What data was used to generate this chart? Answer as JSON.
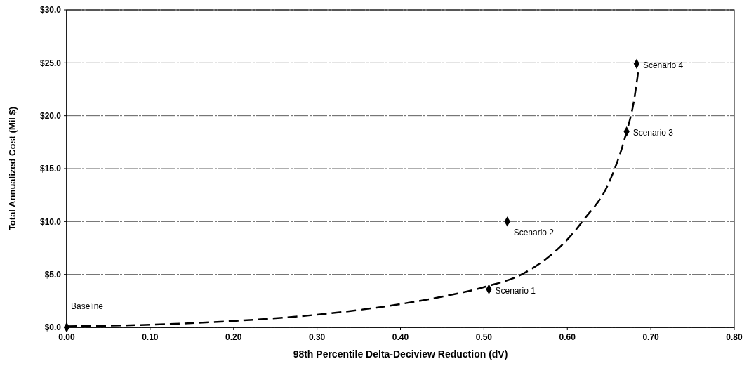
{
  "chart_data": {
    "type": "scatter",
    "xlabel": "98th Percentile Delta-Deciview Reduction (dV)",
    "ylabel": "Total Annualized Cost (Mil $)",
    "xlim": [
      0,
      0.8
    ],
    "xticks": [
      {
        "value": 0,
        "label": "0.00"
      },
      {
        "value": 0.1,
        "label": "0.10"
      },
      {
        "value": 0.2,
        "label": "0.20"
      },
      {
        "value": 0.3,
        "label": "0.30"
      },
      {
        "value": 0.4,
        "label": "0.40"
      },
      {
        "value": 0.5,
        "label": "0.50"
      },
      {
        "value": 0.6,
        "label": "0.60"
      },
      {
        "value": 0.7,
        "label": "0.70"
      },
      {
        "value": 0.8,
        "label": "0.80"
      }
    ],
    "ylim": [
      0,
      30
    ],
    "yticks": [
      {
        "value": 0,
        "label": "$0.0"
      },
      {
        "value": 5,
        "label": "$5.0"
      },
      {
        "value": 10,
        "label": "$10.0"
      },
      {
        "value": 15,
        "label": "$15.0"
      },
      {
        "value": 20,
        "label": "$20.0"
      },
      {
        "value": 25,
        "label": "$25.0"
      },
      {
        "value": 30,
        "label": "$30.0"
      }
    ],
    "grid": "y",
    "series": [
      {
        "type": "line",
        "color": "#000000",
        "line_style": "dashed",
        "marker": "none",
        "x": [
          0,
          0.1,
          0.2,
          0.3,
          0.4,
          0.45,
          0.5,
          0.55,
          0.6,
          0.62,
          0.65,
          0.67,
          0.68,
          0.685
        ],
        "values": [
          0.1,
          0.25,
          0.6,
          1.2,
          2.2,
          2.9,
          3.8,
          5.2,
          8.3,
          10.2,
          13.7,
          18.2,
          21.5,
          24.2
        ]
      },
      {
        "color": "#000000",
        "marker": "diamond",
        "x": [
          0,
          0.506,
          0.528,
          0.671,
          0.683
        ],
        "values": [
          0,
          3.6,
          10.0,
          18.5,
          24.9
        ]
      }
    ],
    "annotations": [
      {
        "text": "Baseline",
        "x": 0,
        "y": 0
      },
      {
        "text": "Scenario 1",
        "x": 0.506,
        "y": 3.6
      },
      {
        "text": "Scenario 2",
        "x": 0.528,
        "y": 10.0
      },
      {
        "text": "Scenario 3",
        "x": 0.671,
        "y": 18.5
      },
      {
        "text": "Scenario 4",
        "x": 0.683,
        "y": 24.9
      }
    ]
  }
}
